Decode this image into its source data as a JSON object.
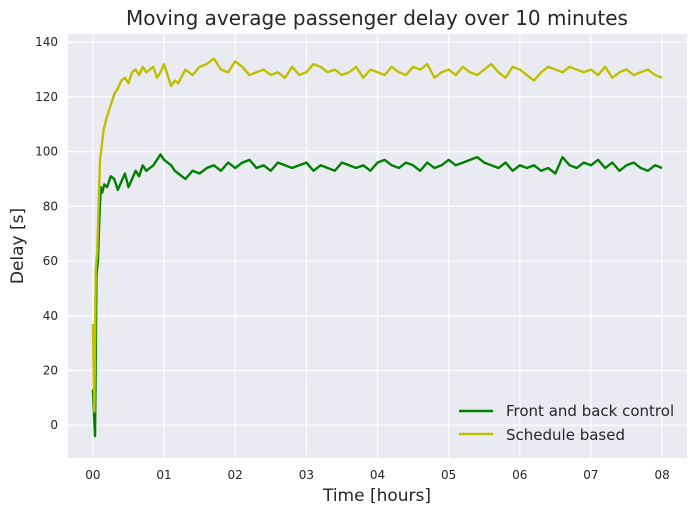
{
  "chart_data": {
    "type": "line",
    "title": "Moving average passenger delay over 10 minutes",
    "xlabel": "Time [hours]",
    "ylabel": "Delay [s]",
    "xlim": [
      -0.35,
      8.35
    ],
    "ylim": [
      -12,
      143
    ],
    "grid": true,
    "legend_position": "bottom-right",
    "background_color": "#eaeaf2",
    "x_ticks": [
      0,
      1,
      2,
      3,
      4,
      5,
      6,
      7,
      8
    ],
    "x_tick_labels": [
      "00",
      "01",
      "02",
      "03",
      "04",
      "05",
      "06",
      "07",
      "08"
    ],
    "y_ticks": [
      0,
      20,
      40,
      60,
      80,
      100,
      120,
      140
    ],
    "y_tick_labels": [
      "0",
      "20",
      "40",
      "60",
      "80",
      "100",
      "120",
      "140"
    ],
    "series": [
      {
        "name": "Front and back control",
        "color": "#008000",
        "x": [
          0,
          0.03,
          0.05,
          0.07,
          0.09,
          0.11,
          0.13,
          0.16,
          0.2,
          0.25,
          0.3,
          0.35,
          0.4,
          0.45,
          0.5,
          0.55,
          0.6,
          0.65,
          0.7,
          0.75,
          0.8,
          0.85,
          0.9,
          0.95,
          1.0,
          1.05,
          1.1,
          1.15,
          1.2,
          1.3,
          1.4,
          1.5,
          1.6,
          1.7,
          1.8,
          1.9,
          2.0,
          2.1,
          2.2,
          2.3,
          2.4,
          2.5,
          2.6,
          2.7,
          2.8,
          2.9,
          3.0,
          3.1,
          3.2,
          3.3,
          3.4,
          3.5,
          3.6,
          3.7,
          3.8,
          3.9,
          4.0,
          4.1,
          4.2,
          4.3,
          4.4,
          4.5,
          4.6,
          4.7,
          4.8,
          4.9,
          5.0,
          5.1,
          5.2,
          5.3,
          5.4,
          5.5,
          5.6,
          5.7,
          5.8,
          5.9,
          6.0,
          6.1,
          6.2,
          6.3,
          6.4,
          6.5,
          6.6,
          6.7,
          6.8,
          6.9,
          7.0,
          7.1,
          7.2,
          7.3,
          7.4,
          7.5,
          7.6,
          7.7,
          7.8,
          7.9,
          8.0
        ],
        "y": [
          13,
          -4,
          55,
          60,
          75,
          87,
          85,
          88,
          87,
          91,
          90,
          86,
          89,
          92,
          87,
          90,
          93,
          91,
          95,
          93,
          94,
          95,
          97,
          99,
          97,
          96,
          95,
          93,
          92,
          90,
          93,
          92,
          94,
          95,
          93,
          96,
          94,
          96,
          97,
          94,
          95,
          93,
          96,
          95,
          94,
          95,
          96,
          93,
          95,
          94,
          93,
          96,
          95,
          94,
          95,
          93,
          96,
          97,
          95,
          94,
          96,
          95,
          93,
          96,
          94,
          95,
          97,
          95,
          96,
          97,
          98,
          96,
          95,
          94,
          96,
          93,
          95,
          94,
          95,
          93,
          94,
          92,
          98,
          95,
          94,
          96,
          95,
          97,
          94,
          96,
          93,
          95,
          96,
          94,
          93,
          95,
          94
        ]
      },
      {
        "name": "Schedule based",
        "color": "#bfbf00",
        "x": [
          0,
          0.02,
          0.04,
          0.06,
          0.08,
          0.1,
          0.12,
          0.15,
          0.2,
          0.25,
          0.3,
          0.35,
          0.4,
          0.45,
          0.5,
          0.55,
          0.6,
          0.65,
          0.7,
          0.75,
          0.8,
          0.85,
          0.9,
          0.95,
          1.0,
          1.05,
          1.1,
          1.15,
          1.2,
          1.3,
          1.4,
          1.5,
          1.6,
          1.7,
          1.8,
          1.9,
          2.0,
          2.1,
          2.2,
          2.3,
          2.4,
          2.5,
          2.6,
          2.7,
          2.8,
          2.9,
          3.0,
          3.1,
          3.2,
          3.3,
          3.4,
          3.5,
          3.6,
          3.7,
          3.8,
          3.9,
          4.0,
          4.1,
          4.2,
          4.3,
          4.4,
          4.5,
          4.6,
          4.7,
          4.8,
          4.9,
          5.0,
          5.1,
          5.2,
          5.3,
          5.4,
          5.5,
          5.6,
          5.7,
          5.8,
          5.9,
          6.0,
          6.1,
          6.2,
          6.3,
          6.4,
          6.5,
          6.6,
          6.7,
          6.8,
          6.9,
          7.0,
          7.1,
          7.2,
          7.3,
          7.4,
          7.5,
          7.6,
          7.7,
          7.8,
          7.9,
          8.0
        ],
        "y": [
          37,
          5,
          57,
          63,
          80,
          97,
          101,
          108,
          113,
          117,
          121,
          123,
          126,
          127,
          125,
          129,
          130,
          128,
          131,
          129,
          130,
          131,
          127,
          129,
          132,
          128,
          124,
          126,
          125,
          130,
          128,
          131,
          132,
          134,
          130,
          129,
          133,
          131,
          128,
          129,
          130,
          128,
          129,
          127,
          131,
          128,
          129,
          132,
          131,
          129,
          130,
          128,
          129,
          131,
          127,
          130,
          129,
          128,
          131,
          129,
          128,
          131,
          130,
          132,
          127,
          129,
          130,
          128,
          131,
          129,
          128,
          130,
          132,
          129,
          127,
          131,
          130,
          128,
          126,
          129,
          131,
          130,
          129,
          131,
          130,
          129,
          130,
          128,
          131,
          127,
          129,
          130,
          128,
          129,
          130,
          128,
          127
        ]
      }
    ]
  }
}
